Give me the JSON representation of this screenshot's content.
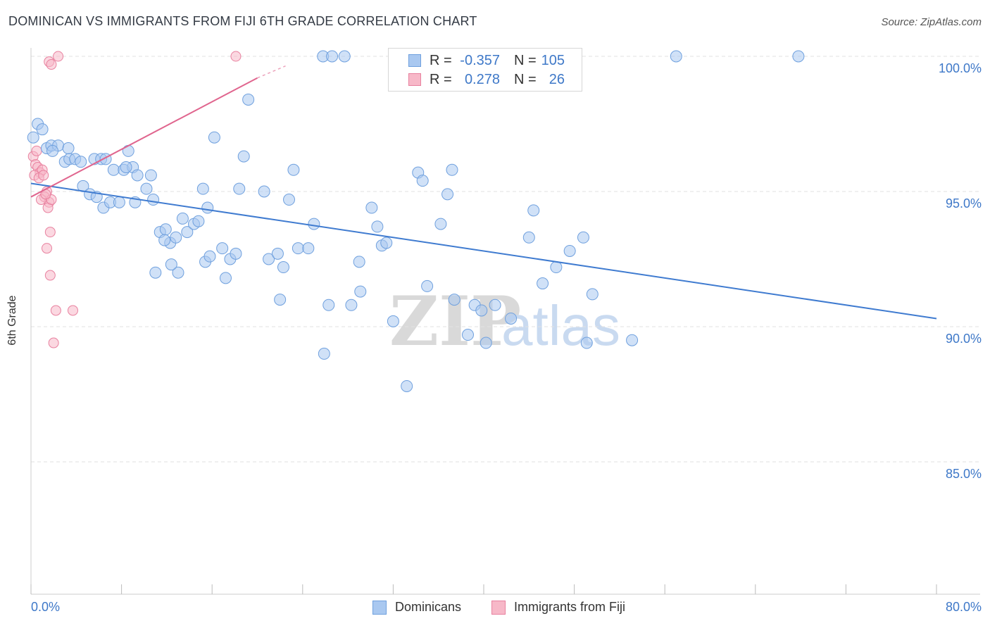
{
  "title": "DOMINICAN VS IMMIGRANTS FROM FIJI 6TH GRADE CORRELATION CHART",
  "source": "Source: ZipAtlas.com",
  "watermark": {
    "zip": "ZIP",
    "atlas": "atlas"
  },
  "stats": [
    {
      "r_label": "R =",
      "r_value": "-0.357",
      "n_label": "N =",
      "n_value": "105",
      "color": "#a9c8f0",
      "border": "#6fa0de"
    },
    {
      "r_label": "R =",
      "r_value": "0.278",
      "n_label": "N =",
      "n_value": "26",
      "color": "#f7b8c8",
      "border": "#e8819f"
    }
  ],
  "legend": {
    "dominicans": "Dominicans",
    "fiji": "Immigrants from Fiji"
  },
  "colors": {
    "blue": "#3f7bd0",
    "blue_fill": "#a9c8f0",
    "pink": "#e0658e",
    "pink_fill": "#f7b8c8",
    "tick": "#3e78c8"
  },
  "chart_data": {
    "type": "scatter",
    "title": "DOMINICAN VS IMMIGRANTS FROM FIJI 6TH GRADE CORRELATION CHART",
    "xlabel": "",
    "ylabel": "6th Grade",
    "xlim": [
      0,
      80
    ],
    "ylim": [
      80,
      100.5
    ],
    "x_tick_labels": [
      "0.0%",
      "80.0%"
    ],
    "y_ticks": [
      {
        "value": 85,
        "label": "85.0%"
      },
      {
        "value": 90,
        "label": "90.0%"
      },
      {
        "value": 95,
        "label": "95.0%"
      },
      {
        "value": 100,
        "label": "100.0%"
      }
    ],
    "series": [
      {
        "name": "Dominicans",
        "r": -0.357,
        "n": 105,
        "trend": {
          "x0": 0,
          "y0": 95.3,
          "x1": 80,
          "y1": 90.3
        },
        "points": [
          [
            0.2,
            97.0
          ],
          [
            0.6,
            97.5
          ],
          [
            1.0,
            97.3
          ],
          [
            1.4,
            96.6
          ],
          [
            1.8,
            96.7
          ],
          [
            2.4,
            96.7
          ],
          [
            1.9,
            96.5
          ],
          [
            3.0,
            96.1
          ],
          [
            3.4,
            96.2
          ],
          [
            3.9,
            96.2
          ],
          [
            4.4,
            96.1
          ],
          [
            5.6,
            96.2
          ],
          [
            6.2,
            96.2
          ],
          [
            6.6,
            96.2
          ],
          [
            7.3,
            95.8
          ],
          [
            8.2,
            95.8
          ],
          [
            8.6,
            96.5
          ],
          [
            9.0,
            95.9
          ],
          [
            9.4,
            95.6
          ],
          [
            10.6,
            95.6
          ],
          [
            4.6,
            95.2
          ],
          [
            5.2,
            94.9
          ],
          [
            5.8,
            94.8
          ],
          [
            6.4,
            94.4
          ],
          [
            7.0,
            94.6
          ],
          [
            7.8,
            94.6
          ],
          [
            9.2,
            94.6
          ],
          [
            10.2,
            95.1
          ],
          [
            10.8,
            94.7
          ],
          [
            11.4,
            93.5
          ],
          [
            11.9,
            93.6
          ],
          [
            12.3,
            93.1
          ],
          [
            12.8,
            93.3
          ],
          [
            13.4,
            94.0
          ],
          [
            13.8,
            93.5
          ],
          [
            14.4,
            93.8
          ],
          [
            14.8,
            93.9
          ],
          [
            15.2,
            95.1
          ],
          [
            15.6,
            94.4
          ],
          [
            13.0,
            92.0
          ],
          [
            12.4,
            92.3
          ],
          [
            11.0,
            92.0
          ],
          [
            15.4,
            92.4
          ],
          [
            15.8,
            92.6
          ],
          [
            16.9,
            92.9
          ],
          [
            17.6,
            92.5
          ],
          [
            18.1,
            92.7
          ],
          [
            17.2,
            91.8
          ],
          [
            18.8,
            96.3
          ],
          [
            18.4,
            95.1
          ],
          [
            19.2,
            98.4
          ],
          [
            20.6,
            95.0
          ],
          [
            21.0,
            92.5
          ],
          [
            21.8,
            92.7
          ],
          [
            22.3,
            92.2
          ],
          [
            22.8,
            94.7
          ],
          [
            23.2,
            95.8
          ],
          [
            23.6,
            92.9
          ],
          [
            24.5,
            92.9
          ],
          [
            25.0,
            93.8
          ],
          [
            25.8,
            100.0
          ],
          [
            26.6,
            100.0
          ],
          [
            25.9,
            89.0
          ],
          [
            26.3,
            90.8
          ],
          [
            27.7,
            100.0
          ],
          [
            28.3,
            90.8
          ],
          [
            29.1,
            91.3
          ],
          [
            30.1,
            94.4
          ],
          [
            30.6,
            93.7
          ],
          [
            31.0,
            93.0
          ],
          [
            31.4,
            93.1
          ],
          [
            32.0,
            90.2
          ],
          [
            33.2,
            87.8
          ],
          [
            33.8,
            100.0
          ],
          [
            33.0,
            100.0
          ],
          [
            34.2,
            95.7
          ],
          [
            34.6,
            95.4
          ],
          [
            35.0,
            91.5
          ],
          [
            36.2,
            93.8
          ],
          [
            37.4,
            91.0
          ],
          [
            37.2,
            95.8
          ],
          [
            38.6,
            89.7
          ],
          [
            39.2,
            90.8
          ],
          [
            39.8,
            90.6
          ],
          [
            40.2,
            89.4
          ],
          [
            41.0,
            90.8
          ],
          [
            42.4,
            90.3
          ],
          [
            44.0,
            93.3
          ],
          [
            44.4,
            94.3
          ],
          [
            46.4,
            92.2
          ],
          [
            47.6,
            92.8
          ],
          [
            48.8,
            93.3
          ],
          [
            49.1,
            89.4
          ],
          [
            49.6,
            91.2
          ],
          [
            53.1,
            89.5
          ],
          [
            67.8,
            100.0
          ],
          [
            57.0,
            100.0
          ],
          [
            3.3,
            96.6
          ],
          [
            8.4,
            95.9
          ],
          [
            16.2,
            97.0
          ],
          [
            11.8,
            93.2
          ],
          [
            22.0,
            91.0
          ],
          [
            29.0,
            92.4
          ],
          [
            36.8,
            94.9
          ],
          [
            45.2,
            91.6
          ]
        ]
      },
      {
        "name": "Immigrants from Fiji",
        "r": 0.278,
        "n": 26,
        "trend": {
          "x0": 0,
          "y0": 94.8,
          "x1": 20,
          "y1": 99.2
        },
        "points": [
          [
            1.6,
            99.8
          ],
          [
            2.4,
            100.0
          ],
          [
            1.8,
            99.7
          ],
          [
            0.2,
            96.3
          ],
          [
            0.4,
            96.0
          ],
          [
            0.6,
            95.9
          ],
          [
            0.8,
            95.7
          ],
          [
            1.0,
            95.8
          ],
          [
            0.3,
            95.6
          ],
          [
            0.7,
            95.5
          ],
          [
            1.1,
            95.6
          ],
          [
            1.4,
            95.0
          ],
          [
            1.2,
            94.8
          ],
          [
            1.6,
            94.6
          ],
          [
            0.9,
            94.7
          ],
          [
            1.5,
            94.4
          ],
          [
            1.8,
            94.7
          ],
          [
            1.7,
            93.5
          ],
          [
            1.4,
            92.9
          ],
          [
            1.7,
            91.9
          ],
          [
            2.2,
            90.6
          ],
          [
            3.7,
            90.6
          ],
          [
            2.0,
            89.4
          ],
          [
            18.1,
            100.0
          ],
          [
            0.5,
            96.5
          ],
          [
            1.3,
            94.9
          ]
        ]
      }
    ]
  }
}
